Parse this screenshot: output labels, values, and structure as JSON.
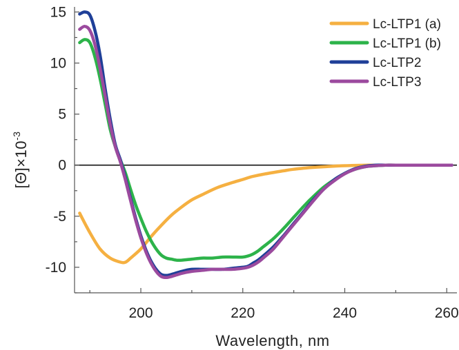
{
  "chart_data": {
    "type": "line",
    "title": "",
    "xlabel": "Wavelength, nm",
    "ylabel_main": "[Θ]×10",
    "ylabel_exponent": "-3",
    "xlim": [
      187,
      262
    ],
    "ylim": [
      -12.5,
      15.5
    ],
    "x_ticks": [
      200,
      220,
      240,
      260
    ],
    "x_tick_labels": [
      "200",
      "220",
      "240",
      "260"
    ],
    "y_ticks": [
      15,
      10,
      5,
      0,
      -5,
      -10
    ],
    "y_tick_labels": [
      "15",
      "10",
      "5",
      "0",
      "-5",
      "-10"
    ],
    "zero_line": true,
    "grid": false,
    "legend_position": "top-right",
    "series": [
      {
        "name": "Lc-LTP1 (a)",
        "color": "#F5B041",
        "x": [
          188,
          190,
          192,
          194,
          196,
          197,
          198,
          200,
          202,
          204,
          206,
          208,
          210,
          212,
          215,
          218,
          220,
          222,
          225,
          228,
          230,
          233,
          236,
          240,
          245,
          250,
          255,
          261
        ],
        "y": [
          -4.7,
          -6.6,
          -8.2,
          -9.1,
          -9.5,
          -9.5,
          -9.1,
          -8.2,
          -7.0,
          -5.9,
          -4.9,
          -4.1,
          -3.4,
          -2.9,
          -2.2,
          -1.7,
          -1.4,
          -1.1,
          -0.8,
          -0.55,
          -0.4,
          -0.25,
          -0.15,
          -0.05,
          0.0,
          0.0,
          0.0,
          0.0
        ]
      },
      {
        "name": "Lc-LTP1 (b)",
        "color": "#2DB34A",
        "x": [
          188,
          189,
          190,
          191,
          192,
          193,
          194,
          195,
          196,
          197,
          198,
          199,
          200,
          201,
          202,
          203,
          204,
          205,
          206,
          207,
          208,
          210,
          212,
          214,
          216,
          218,
          220,
          221,
          222,
          223,
          224,
          226,
          228,
          230,
          232,
          234,
          236,
          238,
          240,
          242,
          244,
          246,
          248,
          250,
          255,
          261
        ],
        "y": [
          12.0,
          12.3,
          12.0,
          10.6,
          8.5,
          6.0,
          3.5,
          1.8,
          0.5,
          -0.8,
          -2.4,
          -3.9,
          -5.2,
          -6.4,
          -7.4,
          -8.2,
          -8.8,
          -9.1,
          -9.2,
          -9.3,
          -9.3,
          -9.2,
          -9.1,
          -9.1,
          -9.0,
          -9.0,
          -9.0,
          -8.9,
          -8.7,
          -8.4,
          -8.0,
          -7.2,
          -6.2,
          -5.1,
          -4.0,
          -3.0,
          -2.1,
          -1.4,
          -0.8,
          -0.4,
          -0.15,
          -0.05,
          0.0,
          0.0,
          0.0,
          0.0
        ]
      },
      {
        "name": "Lc-LTP2",
        "color": "#1F3F98",
        "x": [
          188,
          189,
          190,
          191,
          192,
          193,
          194,
          195,
          196,
          197,
          198,
          199,
          200,
          201,
          202,
          203,
          204,
          205,
          206,
          208,
          210,
          212,
          214,
          216,
          218,
          220,
          221,
          222,
          223,
          224,
          226,
          228,
          230,
          232,
          234,
          236,
          238,
          240,
          242,
          244,
          246,
          248,
          250,
          255,
          261
        ],
        "y": [
          14.8,
          15.0,
          14.7,
          13.2,
          10.8,
          7.5,
          4.5,
          2.0,
          0.5,
          -1.3,
          -3.3,
          -5.2,
          -6.9,
          -8.3,
          -9.4,
          -10.2,
          -10.7,
          -10.8,
          -10.7,
          -10.4,
          -10.2,
          -10.2,
          -10.2,
          -10.2,
          -10.1,
          -10.0,
          -9.9,
          -9.6,
          -9.3,
          -8.9,
          -8.0,
          -6.9,
          -5.7,
          -4.5,
          -3.3,
          -2.3,
          -1.4,
          -0.8,
          -0.35,
          -0.1,
          0.0,
          0.0,
          0.0,
          0.0,
          0.0
        ]
      },
      {
        "name": "Lc-LTP3",
        "color": "#9B4A9E",
        "x": [
          188,
          189,
          190,
          191,
          192,
          193,
          194,
          195,
          196,
          197,
          198,
          199,
          200,
          201,
          202,
          203,
          204,
          205,
          206,
          208,
          210,
          212,
          214,
          216,
          218,
          220,
          221,
          222,
          223,
          224,
          226,
          228,
          230,
          232,
          234,
          236,
          238,
          240,
          242,
          244,
          246,
          248,
          250,
          255,
          261
        ],
        "y": [
          13.3,
          13.6,
          13.2,
          11.8,
          9.5,
          6.8,
          4.0,
          1.8,
          0.3,
          -1.5,
          -3.5,
          -5.4,
          -7.1,
          -8.5,
          -9.6,
          -10.4,
          -10.9,
          -11.0,
          -10.9,
          -10.6,
          -10.4,
          -10.3,
          -10.2,
          -10.2,
          -10.2,
          -10.1,
          -10.0,
          -9.8,
          -9.5,
          -9.1,
          -8.2,
          -7.0,
          -5.8,
          -4.6,
          -3.4,
          -2.3,
          -1.5,
          -0.85,
          -0.4,
          -0.15,
          -0.05,
          0.0,
          0.0,
          0.0,
          0.0
        ]
      }
    ]
  }
}
